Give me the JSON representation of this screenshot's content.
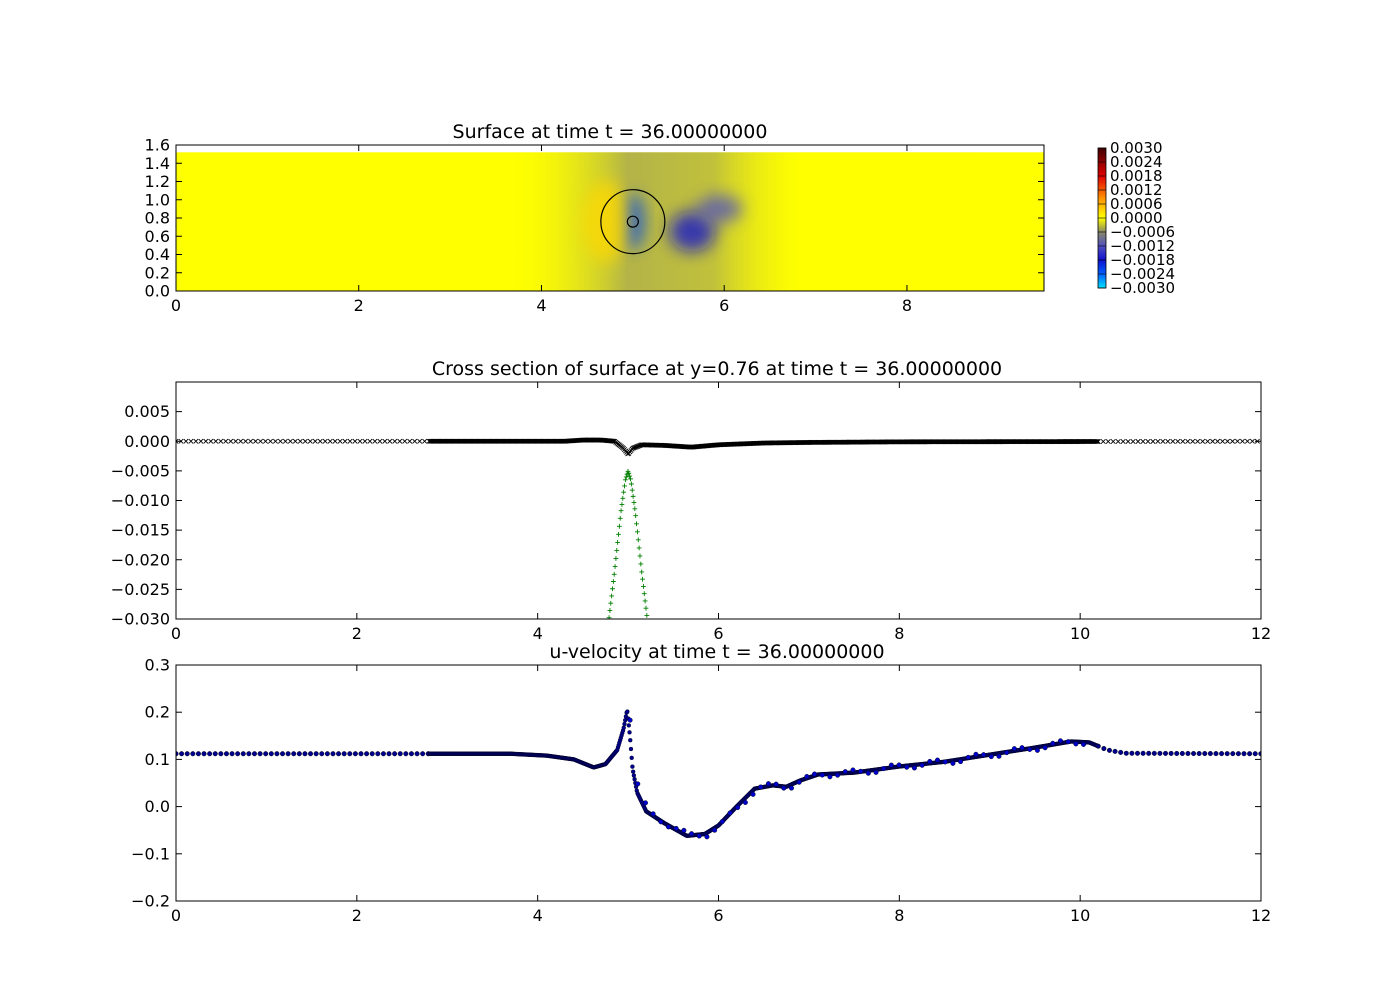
{
  "chart_data": [
    {
      "type": "heatmap",
      "title": "Surface at time t =    36.00000000",
      "xlim": [
        0,
        9.5
      ],
      "ylim": [
        0,
        1.6
      ],
      "xticks": [
        0,
        2,
        4,
        6,
        8
      ],
      "xticklabels": [
        "0",
        "2",
        "4",
        "6",
        "8"
      ],
      "yticks": [
        0.0,
        0.2,
        0.4,
        0.6,
        0.8,
        1.0,
        1.2,
        1.4,
        1.6
      ],
      "yticklabels": [
        "0.0",
        "0.2",
        "0.4",
        "0.6",
        "0.8",
        "1.0",
        "1.2",
        "1.4",
        "1.6"
      ],
      "domain": {
        "xmin": 0,
        "xmax": 9.5,
        "ymin": 0,
        "ymax": 1.52
      },
      "circles": [
        {
          "cx": 5.0,
          "cy": 0.76,
          "r": 0.35
        },
        {
          "cx": 5.0,
          "cy": 0.76,
          "r": 0.06
        }
      ],
      "features": [
        {
          "label": "depression",
          "cx": 5.0,
          "cy": 0.76,
          "rx": 0.12,
          "ry": 0.3,
          "value": -0.0022
        },
        {
          "label": "depression",
          "cx": 5.65,
          "cy": 0.65,
          "rx": 0.25,
          "ry": 0.22,
          "value": -0.0018
        },
        {
          "label": "depression",
          "cx": 5.95,
          "cy": 0.9,
          "rx": 0.25,
          "ry": 0.15,
          "value": -0.0012
        },
        {
          "label": "elevation",
          "cx": 4.7,
          "cy": 0.76,
          "rx": 0.25,
          "ry": 0.45,
          "value": 0.0003
        }
      ],
      "background_value": 0.0,
      "wake_value": -0.0008,
      "colorbar": {
        "min": -0.003,
        "max": 0.003,
        "ticks": [
          "0.0030",
          "0.0024",
          "0.0018",
          "0.0012",
          "0.0006",
          "0.0000",
          "−0.0006",
          "−0.0012",
          "−0.0018",
          "−0.0024",
          "−0.0030"
        ],
        "stops": [
          {
            "value": 0.003,
            "color": "#400000"
          },
          {
            "value": 0.0018,
            "color": "#e00000"
          },
          {
            "value": 0.0008,
            "color": "#ff9900"
          },
          {
            "value": 0.0,
            "color": "#ffff00"
          },
          {
            "value": -0.0006,
            "color": "#888866"
          },
          {
            "value": -0.0012,
            "color": "#5050c0"
          },
          {
            "value": -0.0018,
            "color": "#1010d0"
          },
          {
            "value": -0.0024,
            "color": "#0060ff"
          },
          {
            "value": -0.003,
            "color": "#00e0ff"
          }
        ]
      }
    },
    {
      "type": "scatter",
      "title": "Cross section of surface at y=0.76 at time t =    36.00000000",
      "xlim": [
        0,
        12
      ],
      "ylim": [
        -0.03,
        0.01
      ],
      "xticks": [
        0,
        2,
        4,
        6,
        8,
        10,
        12
      ],
      "xticklabels": [
        "0",
        "2",
        "4",
        "6",
        "8",
        "10",
        "12"
      ],
      "yticks": [
        0.005,
        0.0,
        -0.005,
        -0.01,
        -0.015,
        -0.02,
        -0.025,
        -0.03
      ],
      "yticklabels": [
        "0.005",
        "0.000",
        "−0.005",
        "−0.010",
        "−0.015",
        "−0.020",
        "−0.025",
        "−0.030"
      ],
      "series": [
        {
          "marker": "x",
          "color": "#000000",
          "sparse_ranges": [
            [
              0,
              2.8
            ],
            [
              10.2,
              12
            ]
          ],
          "dense_range": [
            2.8,
            10.2
          ],
          "curve": [
            [
              0,
              0
            ],
            [
              4.3,
              0.0
            ],
            [
              4.5,
              0.0002
            ],
            [
              4.7,
              0.0002
            ],
            [
              4.85,
              0.0
            ],
            [
              4.95,
              -0.0012
            ],
            [
              5.0,
              -0.0022
            ],
            [
              5.05,
              -0.0012
            ],
            [
              5.15,
              -0.0006
            ],
            [
              5.4,
              -0.0007
            ],
            [
              5.7,
              -0.001
            ],
            [
              6.0,
              -0.0006
            ],
            [
              6.5,
              -0.0003
            ],
            [
              7.0,
              -0.0002
            ],
            [
              8,
              -0.0001
            ],
            [
              12,
              0
            ]
          ]
        },
        {
          "marker": "+",
          "color": "#007f00",
          "curve": [
            [
              4.78,
              -0.031
            ],
            [
              4.85,
              -0.022
            ],
            [
              4.92,
              -0.012
            ],
            [
              4.97,
              -0.0065
            ],
            [
              5.0,
              -0.005
            ],
            [
              5.03,
              -0.0065
            ],
            [
              5.08,
              -0.012
            ],
            [
              5.15,
              -0.022
            ],
            [
              5.22,
              -0.031
            ]
          ]
        }
      ]
    },
    {
      "type": "scatter",
      "title": "u-velocity at time t =    36.00000000",
      "xlim": [
        0,
        12
      ],
      "ylim": [
        -0.2,
        0.3
      ],
      "xticks": [
        0,
        2,
        4,
        6,
        8,
        10,
        12
      ],
      "xticklabels": [
        "0",
        "2",
        "4",
        "6",
        "8",
        "10",
        "12"
      ],
      "yticks": [
        0.3,
        0.2,
        0.1,
        0.0,
        -0.1,
        -0.2
      ],
      "yticklabels": [
        "0.3",
        "0.2",
        "0.1",
        "0.0",
        "−0.1",
        "−0.2"
      ],
      "series": [
        {
          "marker": "o",
          "color": "#00008b",
          "sparse_ranges": [
            [
              0,
              2.8
            ],
            [
              10.2,
              12
            ]
          ],
          "dense_range": [
            2.8,
            10.2
          ],
          "curve": [
            [
              0,
              0.112
            ],
            [
              3.7,
              0.112
            ],
            [
              4.1,
              0.108
            ],
            [
              4.4,
              0.1
            ],
            [
              4.62,
              0.083
            ],
            [
              4.75,
              0.09
            ],
            [
              4.88,
              0.12
            ],
            [
              4.95,
              0.165
            ],
            [
              4.99,
              0.205
            ],
            [
              5.02,
              0.15
            ],
            [
              5.05,
              0.08
            ],
            [
              5.1,
              0.03
            ],
            [
              5.2,
              -0.01
            ],
            [
              5.4,
              -0.035
            ],
            [
              5.65,
              -0.062
            ],
            [
              5.85,
              -0.058
            ],
            [
              6.0,
              -0.04
            ],
            [
              6.2,
              0.0
            ],
            [
              6.4,
              0.038
            ],
            [
              6.6,
              0.045
            ],
            [
              6.75,
              0.042
            ],
            [
              6.9,
              0.055
            ],
            [
              7.1,
              0.068
            ],
            [
              7.5,
              0.072
            ],
            [
              8.0,
              0.085
            ],
            [
              8.5,
              0.095
            ],
            [
              9.0,
              0.11
            ],
            [
              9.5,
              0.125
            ],
            [
              9.9,
              0.138
            ],
            [
              10.1,
              0.136
            ],
            [
              10.3,
              0.12
            ],
            [
              10.5,
              0.113
            ],
            [
              12,
              0.112
            ]
          ]
        }
      ]
    }
  ]
}
